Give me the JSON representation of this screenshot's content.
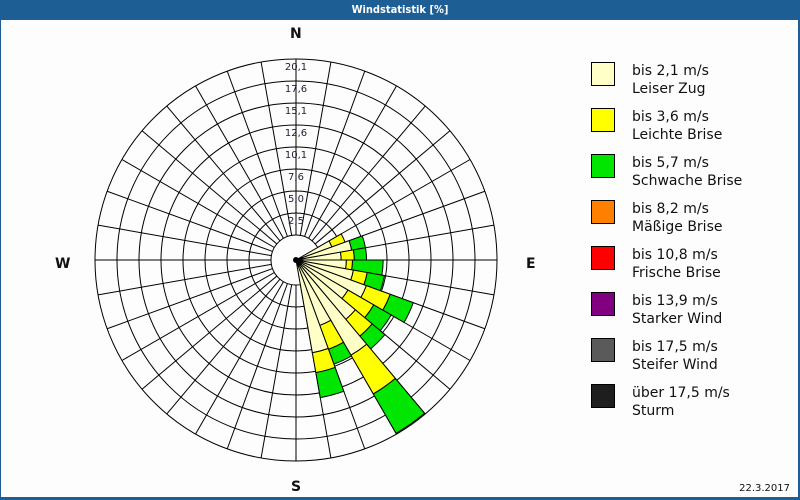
{
  "window": {
    "title": "Windstatistik [%]"
  },
  "compass": {
    "n": "N",
    "e": "E",
    "s": "S",
    "w": "W"
  },
  "date": "22.3.2017",
  "legend": [
    {
      "line1": "bis 2,1 m/s",
      "line2": "Leiser Zug",
      "color": "#ffffc8"
    },
    {
      "line1": "bis 3,6 m/s",
      "line2": "Leichte Brise",
      "color": "#ffff00"
    },
    {
      "line1": "bis 5,7 m/s",
      "line2": "Schwache Brise",
      "color": "#00e600"
    },
    {
      "line1": "bis 8,2 m/s",
      "line2": "Mäßige Brise",
      "color": "#ff8000"
    },
    {
      "line1": "bis 10,8 m/s",
      "line2": "Frische Brise",
      "color": "#ff0000"
    },
    {
      "line1": "bis 13,9 m/s",
      "line2": "Starker Wind",
      "color": "#800080"
    },
    {
      "line1": "bis 17,5 m/s",
      "line2": "Steifer Wind",
      "color": "#5a5a5a"
    },
    {
      "line1": "über 17,5 m/s",
      "line2": "Sturm",
      "color": "#1e1e1e"
    }
  ],
  "chart_data": {
    "type": "wind-rose",
    "title": "Windstatistik [%]",
    "ring_labels": [
      "2,5",
      "5,0",
      "7,6",
      "10,1",
      "12,6",
      "15,1",
      "17,6",
      "20,1"
    ],
    "rmax": 20.1,
    "sector_width_deg": 10,
    "series": [
      "bis 2,1 m/s",
      "bis 3,6 m/s",
      "bis 5,7 m/s",
      "bis 8,2 m/s",
      "bis 10,8 m/s",
      "bis 13,9 m/s",
      "bis 17,5 m/s",
      "über 17,5 m/s"
    ],
    "sectors": [
      {
        "dir": 65,
        "values": [
          1.5,
          1.6,
          0.0
        ]
      },
      {
        "dir": 75,
        "values": [
          3.6,
          0.0,
          1.6
        ]
      },
      {
        "dir": 85,
        "values": [
          2.3,
          1.5,
          1.4
        ]
      },
      {
        "dir": 95,
        "values": [
          2.9,
          0.7,
          3.5
        ]
      },
      {
        "dir": 105,
        "values": [
          3.8,
          1.6,
          2.0
        ]
      },
      {
        "dir": 115,
        "values": [
          5.7,
          2.9,
          2.8
        ]
      },
      {
        "dir": 125,
        "values": [
          4.0,
          3.4,
          2.3
        ]
      },
      {
        "dir": 135,
        "values": [
          6.0,
          2.5,
          1.9
        ]
      },
      {
        "dir": 145,
        "values": [
          9.7,
          5.1,
          5.2
        ]
      },
      {
        "dir": 155,
        "values": [
          5.1,
          2.9,
          1.8
        ]
      },
      {
        "dir": 165,
        "values": [
          7.9,
          2.3,
          2.9
        ]
      }
    ]
  }
}
